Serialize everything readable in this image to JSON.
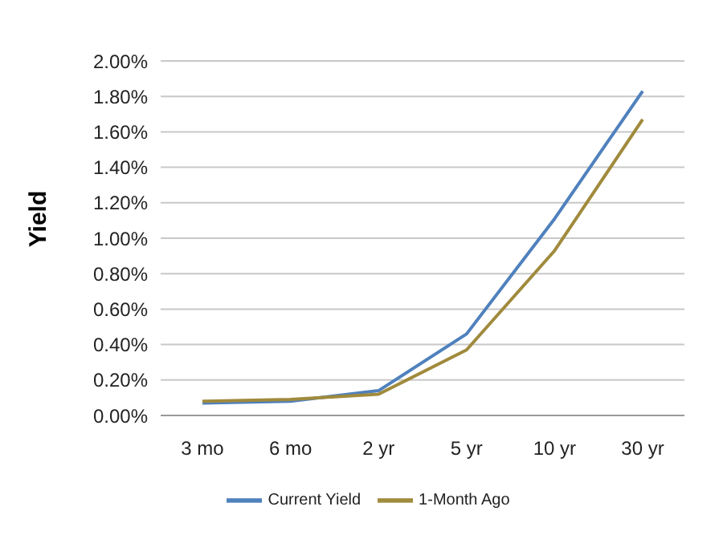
{
  "chart_data": {
    "type": "line",
    "ylabel": "Yield",
    "categories": [
      "3 mo",
      "6 mo",
      "2 yr",
      "5 yr",
      "10 yr",
      "30 yr"
    ],
    "series": [
      {
        "name": "Current Yield",
        "color": "#4f81bd",
        "values": [
          0.07,
          0.08,
          0.14,
          0.46,
          1.11,
          1.83
        ]
      },
      {
        "name": "1-Month Ago",
        "color": "#a08a3c",
        "values": [
          0.08,
          0.09,
          0.12,
          0.37,
          0.93,
          1.67
        ]
      }
    ],
    "ylim": [
      0,
      2
    ],
    "yticks": [
      {
        "value": 0,
        "label": "0.00%"
      },
      {
        "value": 0.2,
        "label": "0.20%"
      },
      {
        "value": 0.4,
        "label": "0.40%"
      },
      {
        "value": 0.6,
        "label": "0.60%"
      },
      {
        "value": 0.8,
        "label": "0.80%"
      },
      {
        "value": 1,
        "label": "1.00%"
      },
      {
        "value": 1.2,
        "label": "1.20%"
      },
      {
        "value": 1.4,
        "label": "1.40%"
      },
      {
        "value": 1.6,
        "label": "1.60%"
      },
      {
        "value": 1.8,
        "label": "1.80%"
      },
      {
        "value": 2,
        "label": "2.00%"
      }
    ],
    "grid": "y",
    "legend": "bottom",
    "marker": "none",
    "line_style": "solid"
  }
}
